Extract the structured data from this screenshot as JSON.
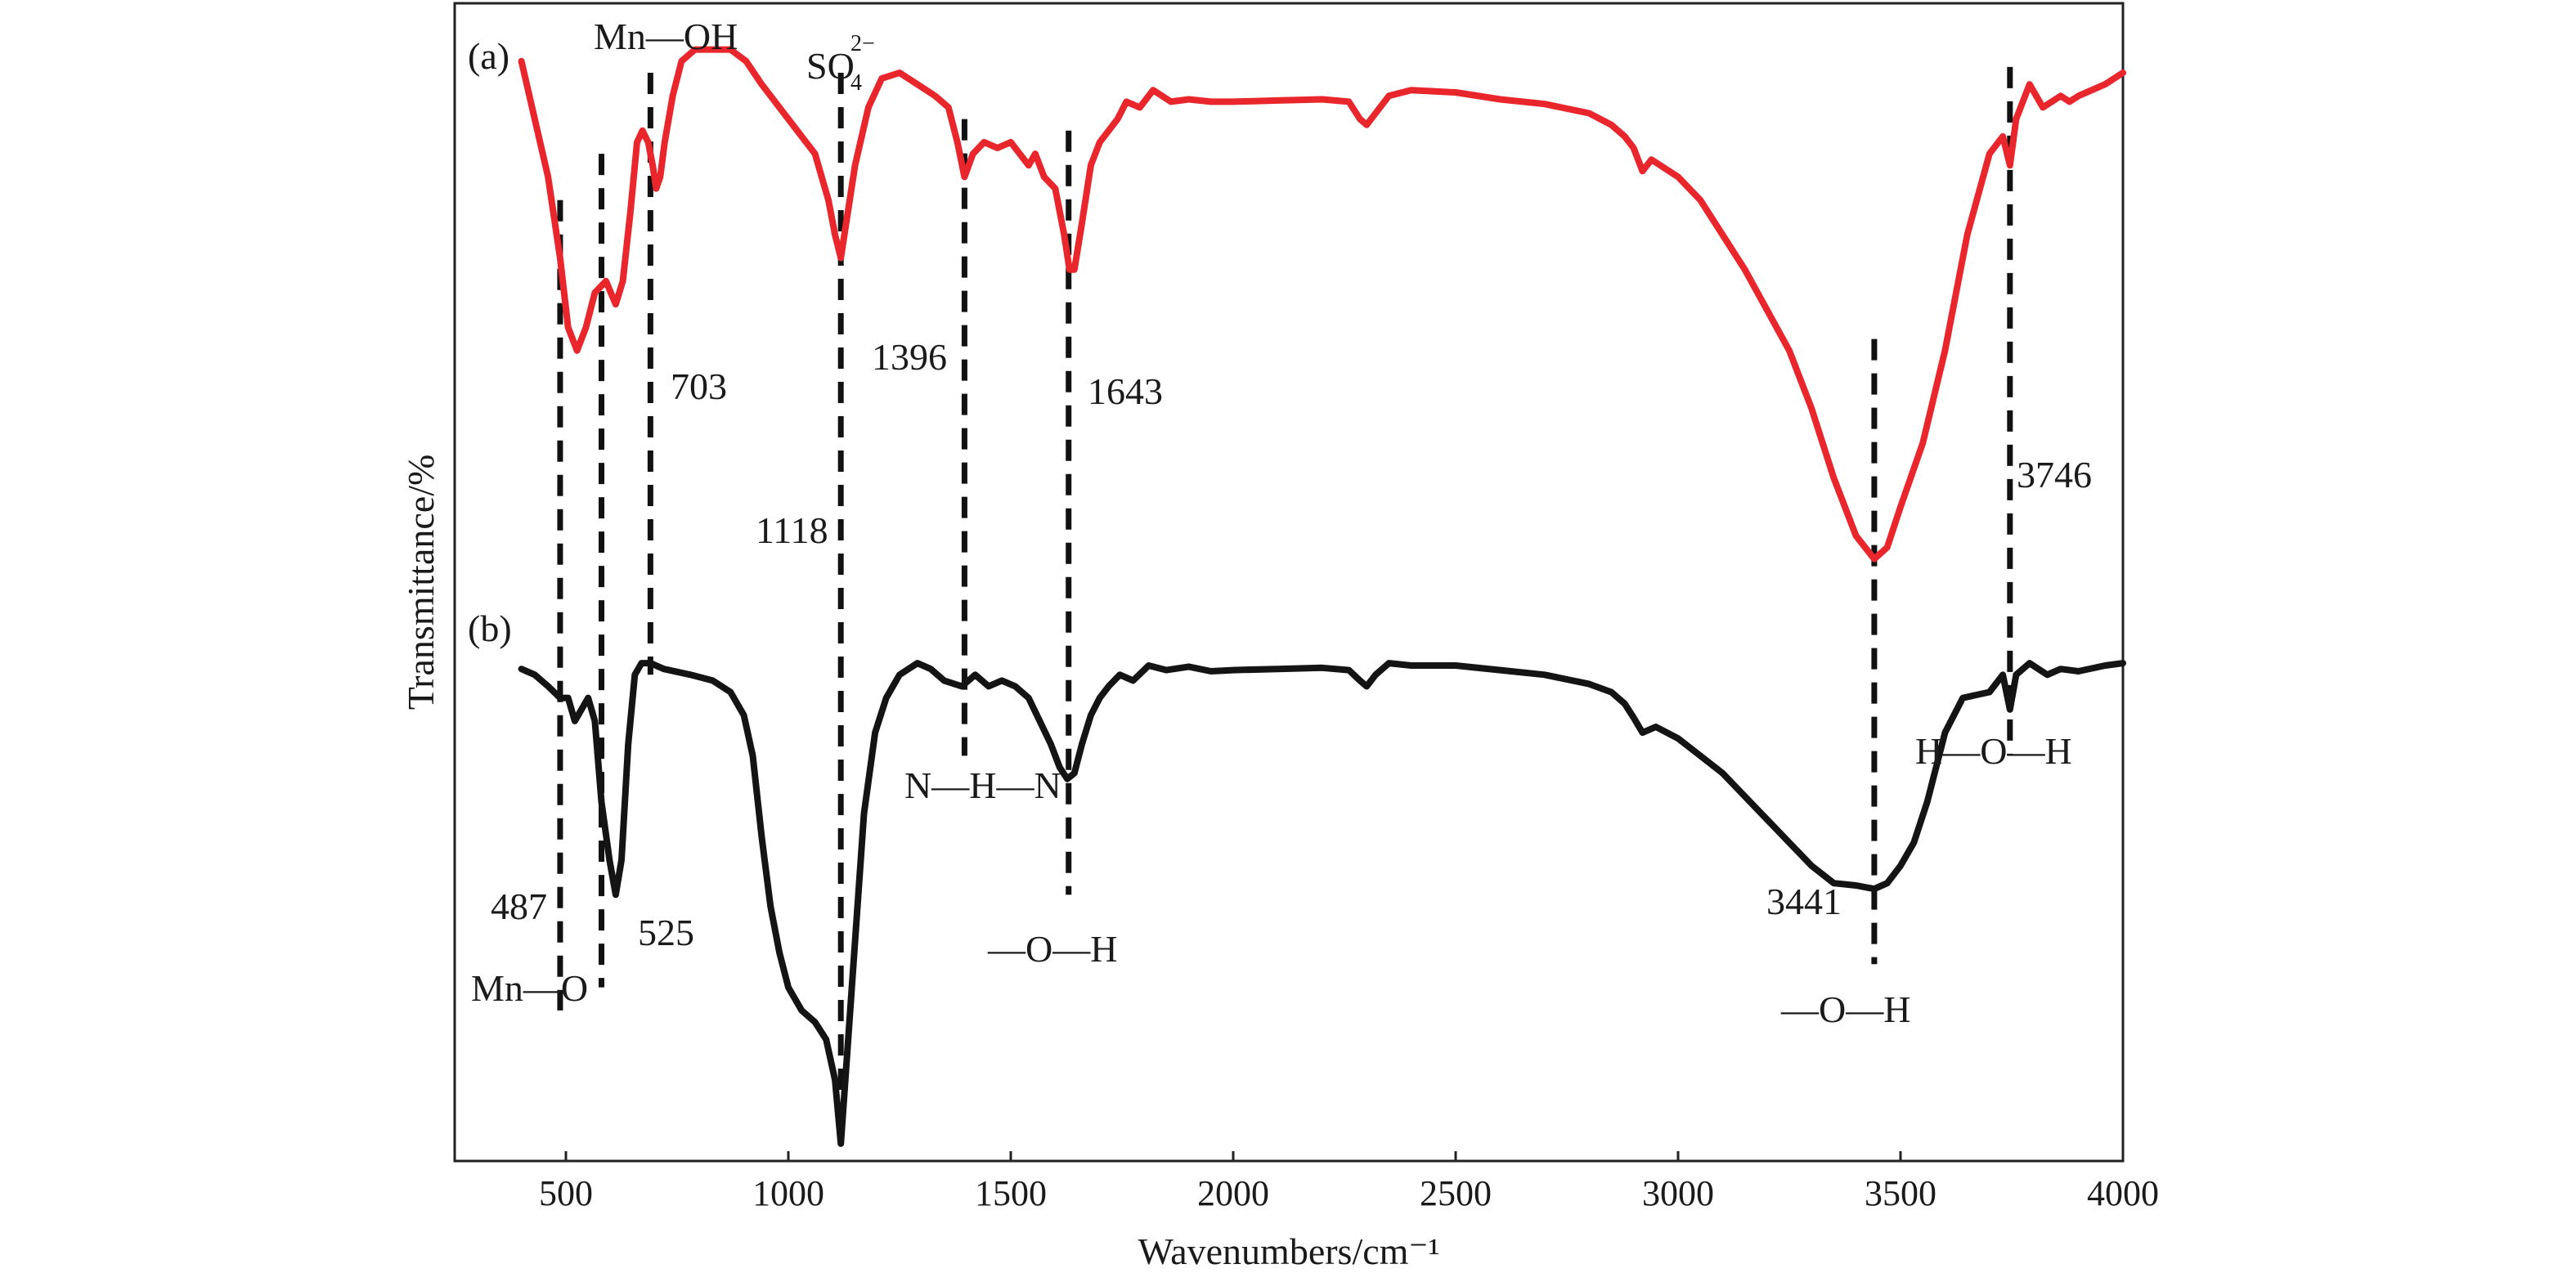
{
  "chart_data": {
    "type": "line",
    "xlabel": "Wavenumbers/cm⁻¹",
    "ylabel": "Transmittance/%",
    "xlim": [
      250,
      4000
    ],
    "x_ticks": [
      500,
      1000,
      1500,
      2000,
      2500,
      3000,
      3500,
      4000
    ],
    "grid": false,
    "colors": {
      "a": "#e8262b",
      "b": "#141414",
      "axis": "#222222",
      "marker": "#111111"
    },
    "panel_labels": {
      "a": "(a)",
      "b": "(b)"
    },
    "y_range_relative": [
      0,
      100
    ],
    "series": [
      {
        "name": "(a)",
        "points": [
          [
            400,
            95
          ],
          [
            430,
            90
          ],
          [
            460,
            85
          ],
          [
            487,
            78
          ],
          [
            505,
            72
          ],
          [
            525,
            70
          ],
          [
            545,
            72
          ],
          [
            565,
            75
          ],
          [
            590,
            76
          ],
          [
            612,
            74
          ],
          [
            628,
            76
          ],
          [
            645,
            82
          ],
          [
            660,
            88
          ],
          [
            672,
            89
          ],
          [
            685,
            88
          ],
          [
            695,
            86
          ],
          [
            703,
            84
          ],
          [
            712,
            85
          ],
          [
            722,
            88
          ],
          [
            740,
            92
          ],
          [
            760,
            95
          ],
          [
            790,
            96
          ],
          [
            830,
            96
          ],
          [
            870,
            96
          ],
          [
            905,
            95
          ],
          [
            940,
            93
          ],
          [
            980,
            91
          ],
          [
            1020,
            89
          ],
          [
            1060,
            87
          ],
          [
            1090,
            83
          ],
          [
            1105,
            80
          ],
          [
            1118,
            78
          ],
          [
            1130,
            81
          ],
          [
            1150,
            86
          ],
          [
            1180,
            91
          ],
          [
            1210,
            93.5
          ],
          [
            1250,
            94
          ],
          [
            1290,
            93
          ],
          [
            1330,
            92
          ],
          [
            1360,
            91
          ],
          [
            1380,
            88
          ],
          [
            1396,
            85
          ],
          [
            1415,
            87
          ],
          [
            1440,
            88
          ],
          [
            1470,
            87.5
          ],
          [
            1500,
            88
          ],
          [
            1520,
            87
          ],
          [
            1540,
            86
          ],
          [
            1555,
            87
          ],
          [
            1575,
            85
          ],
          [
            1600,
            84
          ],
          [
            1620,
            80
          ],
          [
            1632,
            77
          ],
          [
            1643,
            77
          ],
          [
            1660,
            81
          ],
          [
            1680,
            86
          ],
          [
            1700,
            88
          ],
          [
            1720,
            89
          ],
          [
            1740,
            90
          ],
          [
            1760,
            91.5
          ],
          [
            1790,
            91
          ],
          [
            1820,
            92.5
          ],
          [
            1860,
            91.5
          ],
          [
            1900,
            91.7
          ],
          [
            1950,
            91.5
          ],
          [
            2000,
            91.5
          ],
          [
            2100,
            91.6
          ],
          [
            2200,
            91.7
          ],
          [
            2260,
            91.5
          ],
          [
            2285,
            90
          ],
          [
            2300,
            89.5
          ],
          [
            2320,
            90.5
          ],
          [
            2350,
            92
          ],
          [
            2400,
            92.5
          ],
          [
            2500,
            92.3
          ],
          [
            2600,
            91.7
          ],
          [
            2700,
            91.3
          ],
          [
            2800,
            90.5
          ],
          [
            2850,
            89.5
          ],
          [
            2880,
            88.5
          ],
          [
            2900,
            87.5
          ],
          [
            2920,
            85.5
          ],
          [
            2940,
            86.5
          ],
          [
            2960,
            86
          ],
          [
            3000,
            85
          ],
          [
            3050,
            83
          ],
          [
            3100,
            80
          ],
          [
            3150,
            77
          ],
          [
            3200,
            73.5
          ],
          [
            3250,
            70
          ],
          [
            3300,
            65
          ],
          [
            3350,
            59
          ],
          [
            3400,
            54
          ],
          [
            3441,
            52
          ],
          [
            3470,
            53
          ],
          [
            3500,
            56.5
          ],
          [
            3550,
            62
          ],
          [
            3600,
            70
          ],
          [
            3650,
            80
          ],
          [
            3700,
            87
          ],
          [
            3730,
            88.5
          ],
          [
            3746,
            86
          ],
          [
            3760,
            90
          ],
          [
            3790,
            93
          ],
          [
            3820,
            91
          ],
          [
            3860,
            92
          ],
          [
            3880,
            91.5
          ],
          [
            3900,
            92
          ],
          [
            3930,
            92.5
          ],
          [
            3960,
            93
          ],
          [
            4000,
            94
          ]
        ]
      },
      {
        "name": "(b)",
        "points": [
          [
            400,
            42.5
          ],
          [
            430,
            42
          ],
          [
            460,
            41
          ],
          [
            487,
            40
          ],
          [
            505,
            40
          ],
          [
            520,
            38
          ],
          [
            535,
            39
          ],
          [
            550,
            40
          ],
          [
            565,
            38
          ],
          [
            580,
            31
          ],
          [
            598,
            26
          ],
          [
            612,
            23
          ],
          [
            625,
            26
          ],
          [
            640,
            36
          ],
          [
            655,
            42
          ],
          [
            670,
            43
          ],
          [
            690,
            43
          ],
          [
            720,
            42.5
          ],
          [
            780,
            42
          ],
          [
            830,
            41.5
          ],
          [
            870,
            40.5
          ],
          [
            900,
            38.5
          ],
          [
            920,
            35
          ],
          [
            940,
            28
          ],
          [
            960,
            22
          ],
          [
            980,
            18
          ],
          [
            1000,
            15
          ],
          [
            1030,
            13
          ],
          [
            1060,
            12
          ],
          [
            1085,
            10.5
          ],
          [
            1105,
            7
          ],
          [
            1118,
            1.5
          ],
          [
            1130,
            8
          ],
          [
            1150,
            19
          ],
          [
            1170,
            30
          ],
          [
            1195,
            37
          ],
          [
            1220,
            40
          ],
          [
            1250,
            42
          ],
          [
            1290,
            43
          ],
          [
            1320,
            42.5
          ],
          [
            1350,
            41.5
          ],
          [
            1390,
            41
          ],
          [
            1420,
            42
          ],
          [
            1450,
            41
          ],
          [
            1480,
            41.5
          ],
          [
            1510,
            41
          ],
          [
            1540,
            40
          ],
          [
            1565,
            38
          ],
          [
            1590,
            36
          ],
          [
            1610,
            34
          ],
          [
            1627,
            33
          ],
          [
            1643,
            33.5
          ],
          [
            1660,
            36
          ],
          [
            1680,
            38.5
          ],
          [
            1700,
            40
          ],
          [
            1720,
            41
          ],
          [
            1745,
            42
          ],
          [
            1775,
            41.5
          ],
          [
            1810,
            42.8
          ],
          [
            1850,
            42.4
          ],
          [
            1900,
            42.7
          ],
          [
            1950,
            42.3
          ],
          [
            2000,
            42.4
          ],
          [
            2100,
            42.5
          ],
          [
            2200,
            42.6
          ],
          [
            2260,
            42.4
          ],
          [
            2285,
            41.5
          ],
          [
            2300,
            41
          ],
          [
            2320,
            42
          ],
          [
            2350,
            43
          ],
          [
            2400,
            42.8
          ],
          [
            2500,
            42.8
          ],
          [
            2600,
            42.4
          ],
          [
            2700,
            42
          ],
          [
            2800,
            41.2
          ],
          [
            2850,
            40.5
          ],
          [
            2880,
            39.5
          ],
          [
            2900,
            38.3
          ],
          [
            2920,
            37
          ],
          [
            2950,
            37.5
          ],
          [
            3000,
            36.5
          ],
          [
            3050,
            35
          ],
          [
            3100,
            33.5
          ],
          [
            3150,
            31.5
          ],
          [
            3200,
            29.5
          ],
          [
            3250,
            27.5
          ],
          [
            3300,
            25.5
          ],
          [
            3350,
            24
          ],
          [
            3400,
            23.8
          ],
          [
            3441,
            23.5
          ],
          [
            3470,
            24
          ],
          [
            3500,
            25.5
          ],
          [
            3530,
            27.5
          ],
          [
            3560,
            31
          ],
          [
            3600,
            37
          ],
          [
            3640,
            40
          ],
          [
            3700,
            40.5
          ],
          [
            3730,
            42
          ],
          [
            3746,
            39
          ],
          [
            3760,
            42
          ],
          [
            3790,
            43
          ],
          [
            3830,
            42
          ],
          [
            3860,
            42.5
          ],
          [
            3900,
            42.3
          ],
          [
            3960,
            42.8
          ],
          [
            4000,
            43
          ]
        ]
      }
    ],
    "markers": [
      {
        "x": 487,
        "y_top": 83,
        "y_bottom": 13
      },
      {
        "x": 580,
        "y_top": 87,
        "y_bottom": 15
      },
      {
        "x": 690,
        "y_top": 94,
        "y_bottom": 42
      },
      {
        "x": 1118,
        "y_top": 94,
        "y_bottom": 2
      },
      {
        "x": 1396,
        "y_top": 90,
        "y_bottom": 35
      },
      {
        "x": 1630,
        "y_top": 89,
        "y_bottom": 23
      },
      {
        "x": 3441,
        "y_top": 71,
        "y_bottom": 17
      },
      {
        "x": 3746,
        "y_top": 94.5,
        "y_bottom": 35
      }
    ],
    "annotations": {
      "mn_oh": "Mn—OH",
      "so4_base": "SO",
      "so4_sub": "4",
      "so4_sup": "2−",
      "n_703": "703",
      "n_1396": "1396",
      "n_1643": "1643",
      "n_1118": "1118",
      "n_3746": "3746",
      "n_h_n": "N—H—N",
      "h_o_h": "H—O—H",
      "n_487": "487",
      "n_525": "525",
      "mn_o": "Mn—O",
      "o_h_1": "—O—H",
      "n_3441": "3441",
      "o_h_2": "—O—H"
    }
  }
}
